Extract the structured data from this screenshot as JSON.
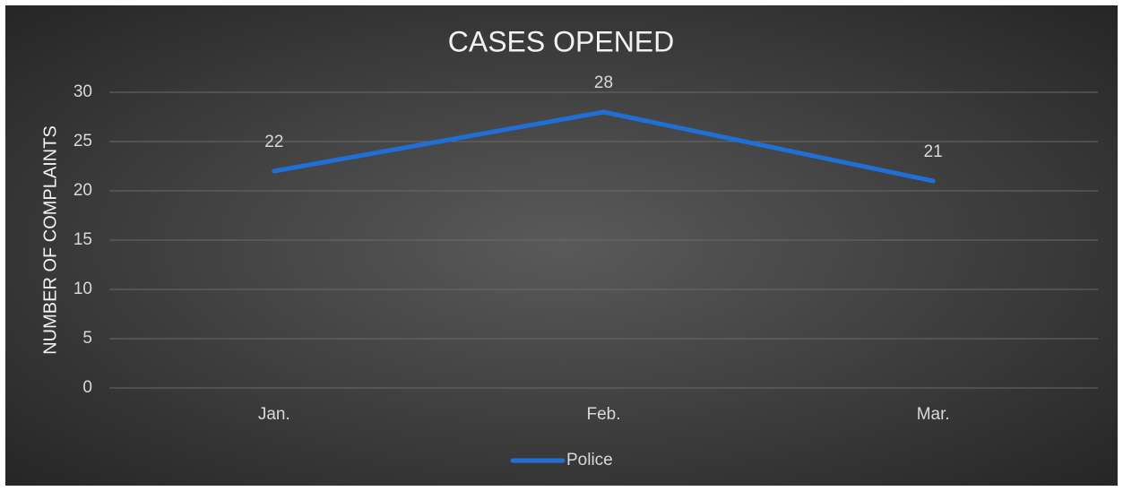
{
  "chart_data": {
    "type": "line",
    "title": "CASES OPENED",
    "y_label": "NUMBER OF COMPLAINTS",
    "categories": [
      "Jan.",
      "Feb.",
      "Mar."
    ],
    "series": [
      {
        "name": "Police",
        "color": "#1f6fd6",
        "values": [
          22,
          28,
          21
        ]
      }
    ],
    "ylim": [
      0,
      30
    ],
    "yticks": [
      0,
      5,
      10,
      15,
      20,
      25,
      30
    ],
    "grid": true,
    "legend": "bottom",
    "data_labels": true
  }
}
